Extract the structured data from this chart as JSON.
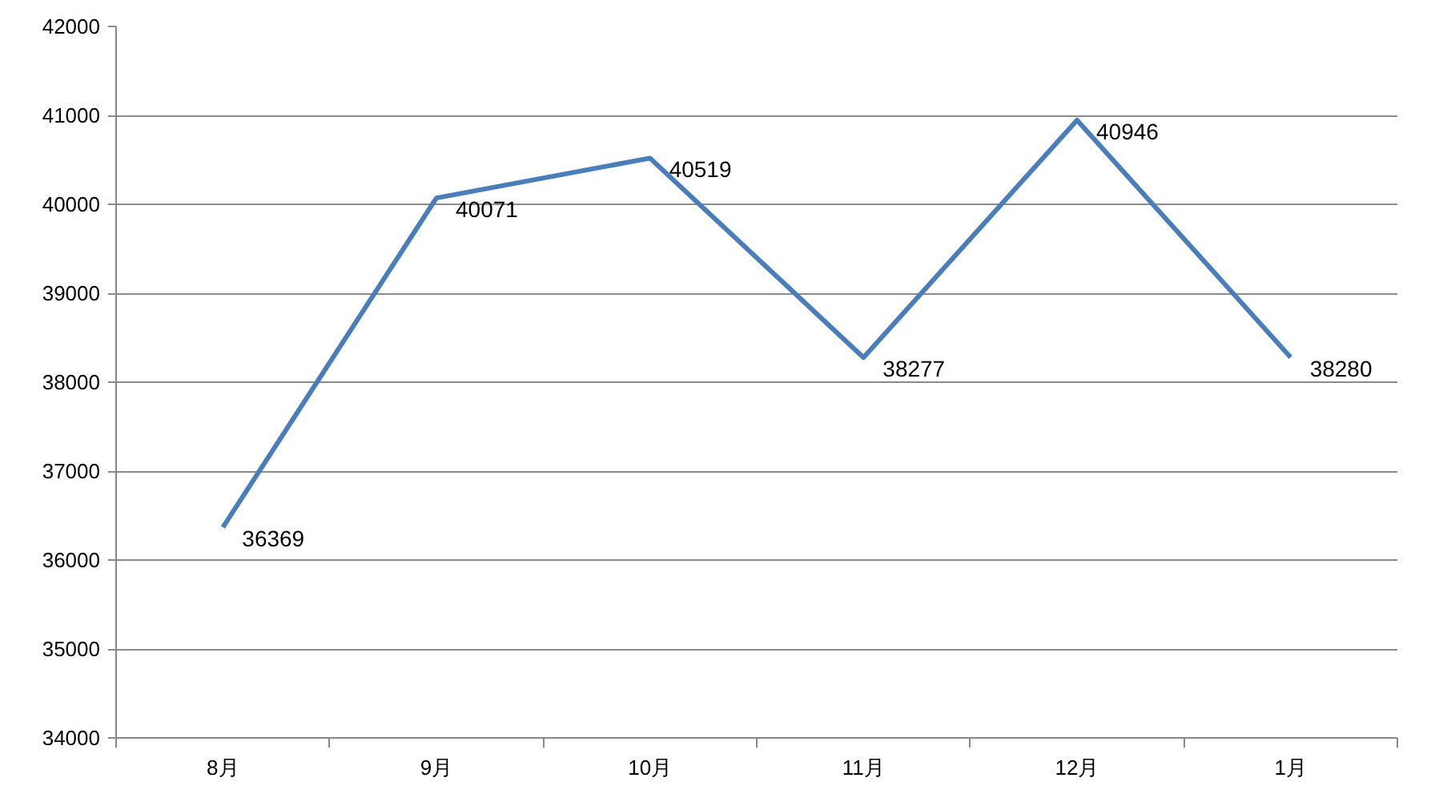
{
  "chart_data": {
    "type": "line",
    "categories": [
      "8月",
      "9月",
      "10月",
      "11月",
      "12月",
      "1月"
    ],
    "series": [
      {
        "color": "#4a7ebb",
        "values": [
          36369,
          40071,
          40519,
          38277,
          40946,
          38280
        ]
      }
    ],
    "ylim": [
      34000,
      42000
    ],
    "yticks": [
      34000,
      35000,
      36000,
      37000,
      38000,
      39000,
      40000,
      41000,
      42000
    ],
    "grid": "y",
    "data_labels": true,
    "marker": "none",
    "line_style": "solid"
  }
}
